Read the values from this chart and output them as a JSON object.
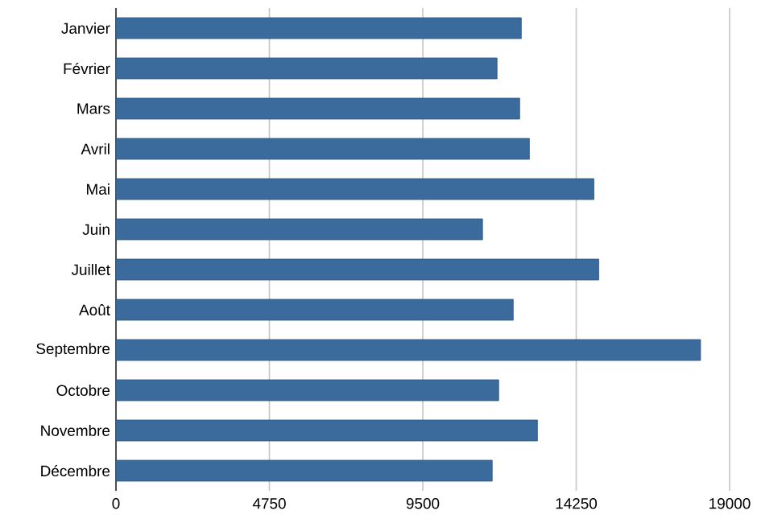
{
  "chart_data": {
    "type": "bar",
    "orientation": "horizontal",
    "categories": [
      "Janvier",
      "Février",
      "Mars",
      "Avril",
      "Mai",
      "Juin",
      "Juillet",
      "Août",
      "Septembre",
      "Octobre",
      "Novembre",
      "Décembre"
    ],
    "values": [
      12550,
      11800,
      12500,
      12800,
      14800,
      11350,
      14950,
      12300,
      18100,
      11850,
      13050,
      11650
    ],
    "color": "#3b6b9c",
    "xlim": [
      0,
      19000
    ],
    "xticks": [
      0,
      4750,
      9500,
      14250,
      19000
    ],
    "grid": "x"
  }
}
